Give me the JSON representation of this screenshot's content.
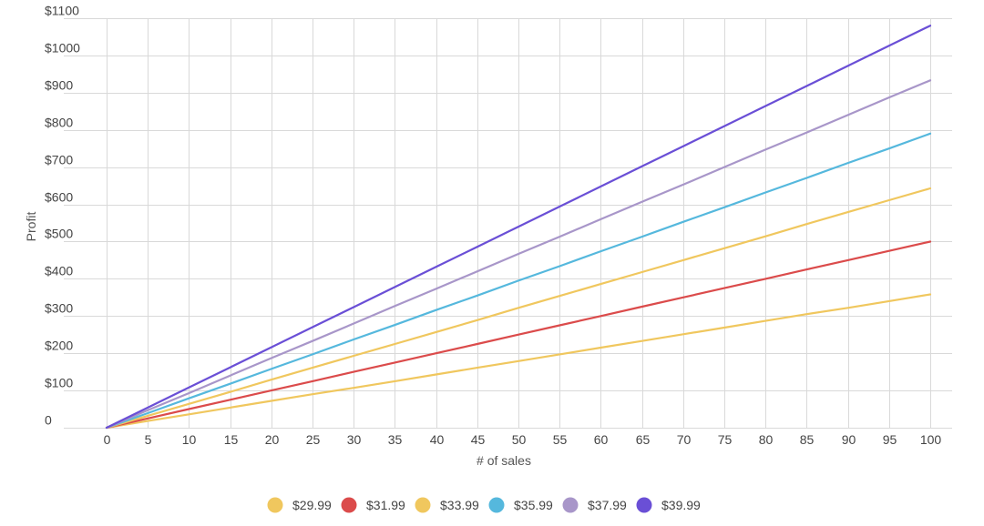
{
  "chart_data": {
    "type": "line",
    "title": "",
    "xlabel": "# of sales",
    "ylabel": "Profit",
    "x": [
      0,
      5,
      10,
      15,
      20,
      25,
      30,
      35,
      40,
      45,
      50,
      55,
      60,
      65,
      70,
      75,
      80,
      85,
      90,
      95,
      100
    ],
    "x_ticks": [
      "0",
      "5",
      "10",
      "15",
      "20",
      "25",
      "30",
      "35",
      "40",
      "45",
      "50",
      "55",
      "60",
      "65",
      "70",
      "75",
      "80",
      "85",
      "90",
      "95",
      "100"
    ],
    "y_ticks": [
      {
        "value": 0,
        "label": "0"
      },
      {
        "value": 100,
        "label": "$100"
      },
      {
        "value": 200,
        "label": "$200"
      },
      {
        "value": 300,
        "label": "$300"
      },
      {
        "value": 400,
        "label": "$400"
      },
      {
        "value": 500,
        "label": "$500"
      },
      {
        "value": 600,
        "label": "$600"
      },
      {
        "value": 700,
        "label": "$700"
      },
      {
        "value": 800,
        "label": "$800"
      },
      {
        "value": 900,
        "label": "$900"
      },
      {
        "value": 1000,
        "label": "$1000"
      },
      {
        "value": 1100,
        "label": "$1100"
      }
    ],
    "xlim": [
      0,
      100
    ],
    "ylim": [
      0,
      1100
    ],
    "grid": true,
    "legend_position": "bottom",
    "series": [
      {
        "name": "$29.99",
        "color": "#f0c75e",
        "values": [
          0,
          18,
          36,
          54,
          72,
          90,
          107,
          125,
          143,
          161,
          179,
          197,
          215,
          233,
          251,
          269,
          287,
          305,
          322,
          340,
          358
        ]
      },
      {
        "name": "$31.99",
        "color": "#db4b4b",
        "values": [
          0,
          25,
          50,
          75,
          100,
          125,
          150,
          175,
          200,
          225,
          250,
          275,
          300,
          325,
          350,
          375,
          400,
          425,
          450,
          475,
          500
        ]
      },
      {
        "name": "$33.99",
        "color": "#f0c75e",
        "values": [
          0,
          32,
          64,
          96,
          129,
          161,
          193,
          225,
          257,
          289,
          322,
          354,
          386,
          418,
          450,
          482,
          514,
          547,
          579,
          611,
          643
        ]
      },
      {
        "name": "$35.99",
        "color": "#55b8dd",
        "values": [
          0,
          39,
          79,
          118,
          158,
          197,
          237,
          276,
          316,
          355,
          395,
          434,
          474,
          513,
          553,
          592,
          632,
          671,
          711,
          750,
          790
        ]
      },
      {
        "name": "$37.99",
        "color": "#a896c9",
        "values": [
          0,
          47,
          93,
          140,
          187,
          233,
          280,
          327,
          373,
          420,
          467,
          513,
          560,
          607,
          653,
          700,
          747,
          793,
          840,
          887,
          933
        ]
      },
      {
        "name": "$39.99",
        "color": "#6a4fd6",
        "values": [
          0,
          54,
          108,
          162,
          216,
          270,
          324,
          378,
          432,
          486,
          540,
          594,
          648,
          702,
          756,
          810,
          864,
          918,
          972,
          1026,
          1080
        ]
      }
    ]
  }
}
